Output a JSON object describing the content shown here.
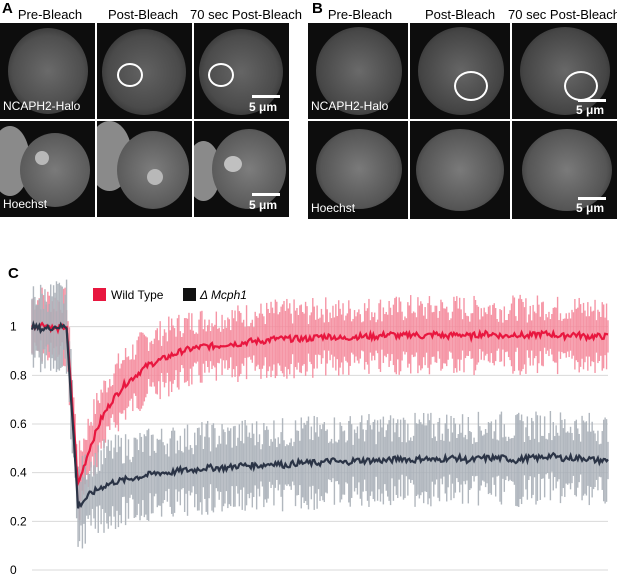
{
  "panel_a": {
    "letter": "A",
    "columns": [
      "Pre-Bleach",
      "Post-Bleach",
      "70 sec Post-Bleach"
    ],
    "rows": [
      "NCAPH2-Halo",
      "Hoechst"
    ],
    "scale": "5 μm"
  },
  "panel_b": {
    "letter": "B",
    "columns": [
      "Pre-Bleach",
      "Post-Bleach",
      "70 sec Post-Bleach"
    ],
    "rows": [
      "NCAPH2-Halo",
      "Hoechst"
    ],
    "scale": "5 μm"
  },
  "panel_c": {
    "letter": "C"
  },
  "chart_data": {
    "type": "line",
    "title": "",
    "xlabel": "",
    "ylabel": "",
    "ylim": [
      0,
      1.2
    ],
    "yticks": [
      "0",
      "0.2",
      "0.4",
      "0.6",
      "0.8",
      "1"
    ],
    "grid": true,
    "legend_position": "top-left",
    "series": [
      {
        "name": "Wild Type",
        "color": "#e8173f",
        "band_color": "#f58a9c",
        "x": [
          0,
          2,
          4,
          6,
          8,
          10,
          12,
          14,
          16,
          18,
          20,
          22,
          24,
          26,
          28,
          30,
          32,
          34,
          36,
          38,
          40,
          42,
          44,
          46,
          48,
          50,
          52,
          54,
          56,
          58,
          60,
          62,
          64,
          66,
          68,
          70,
          72,
          74,
          76,
          78,
          80,
          82,
          84,
          86,
          88,
          90,
          92,
          94,
          96,
          98,
          100
        ],
        "values": [
          1.0,
          1.01,
          0.99,
          1.0,
          0.35,
          0.5,
          0.62,
          0.7,
          0.76,
          0.8,
          0.84,
          0.86,
          0.88,
          0.9,
          0.91,
          0.92,
          0.92,
          0.93,
          0.93,
          0.94,
          0.94,
          0.95,
          0.95,
          0.95,
          0.95,
          0.96,
          0.96,
          0.95,
          0.96,
          0.96,
          0.96,
          0.97,
          0.96,
          0.97,
          0.96,
          0.97,
          0.96,
          0.97,
          0.96,
          0.97,
          0.97,
          0.96,
          0.97,
          0.96,
          0.97,
          0.97,
          0.96,
          0.97,
          0.96,
          0.96,
          0.96
        ],
        "spread": 0.11
      },
      {
        "name": "Δ Mcph1",
        "color": "#2b3446",
        "band_color": "#a9b0b8",
        "x": [
          0,
          2,
          4,
          6,
          8,
          10,
          12,
          14,
          16,
          18,
          20,
          22,
          24,
          26,
          28,
          30,
          32,
          34,
          36,
          38,
          40,
          42,
          44,
          46,
          48,
          50,
          52,
          54,
          56,
          58,
          60,
          62,
          64,
          66,
          68,
          70,
          72,
          74,
          76,
          78,
          80,
          82,
          84,
          86,
          88,
          90,
          92,
          94,
          96,
          98,
          100
        ],
        "values": [
          1.0,
          0.99,
          1.0,
          1.0,
          0.26,
          0.31,
          0.34,
          0.36,
          0.37,
          0.38,
          0.39,
          0.4,
          0.4,
          0.41,
          0.41,
          0.42,
          0.42,
          0.42,
          0.43,
          0.43,
          0.43,
          0.44,
          0.43,
          0.44,
          0.44,
          0.44,
          0.45,
          0.44,
          0.45,
          0.45,
          0.45,
          0.45,
          0.46,
          0.45,
          0.46,
          0.45,
          0.46,
          0.46,
          0.45,
          0.46,
          0.46,
          0.46,
          0.45,
          0.46,
          0.46,
          0.47,
          0.46,
          0.46,
          0.46,
          0.45,
          0.45
        ],
        "spread": 0.13
      }
    ]
  }
}
